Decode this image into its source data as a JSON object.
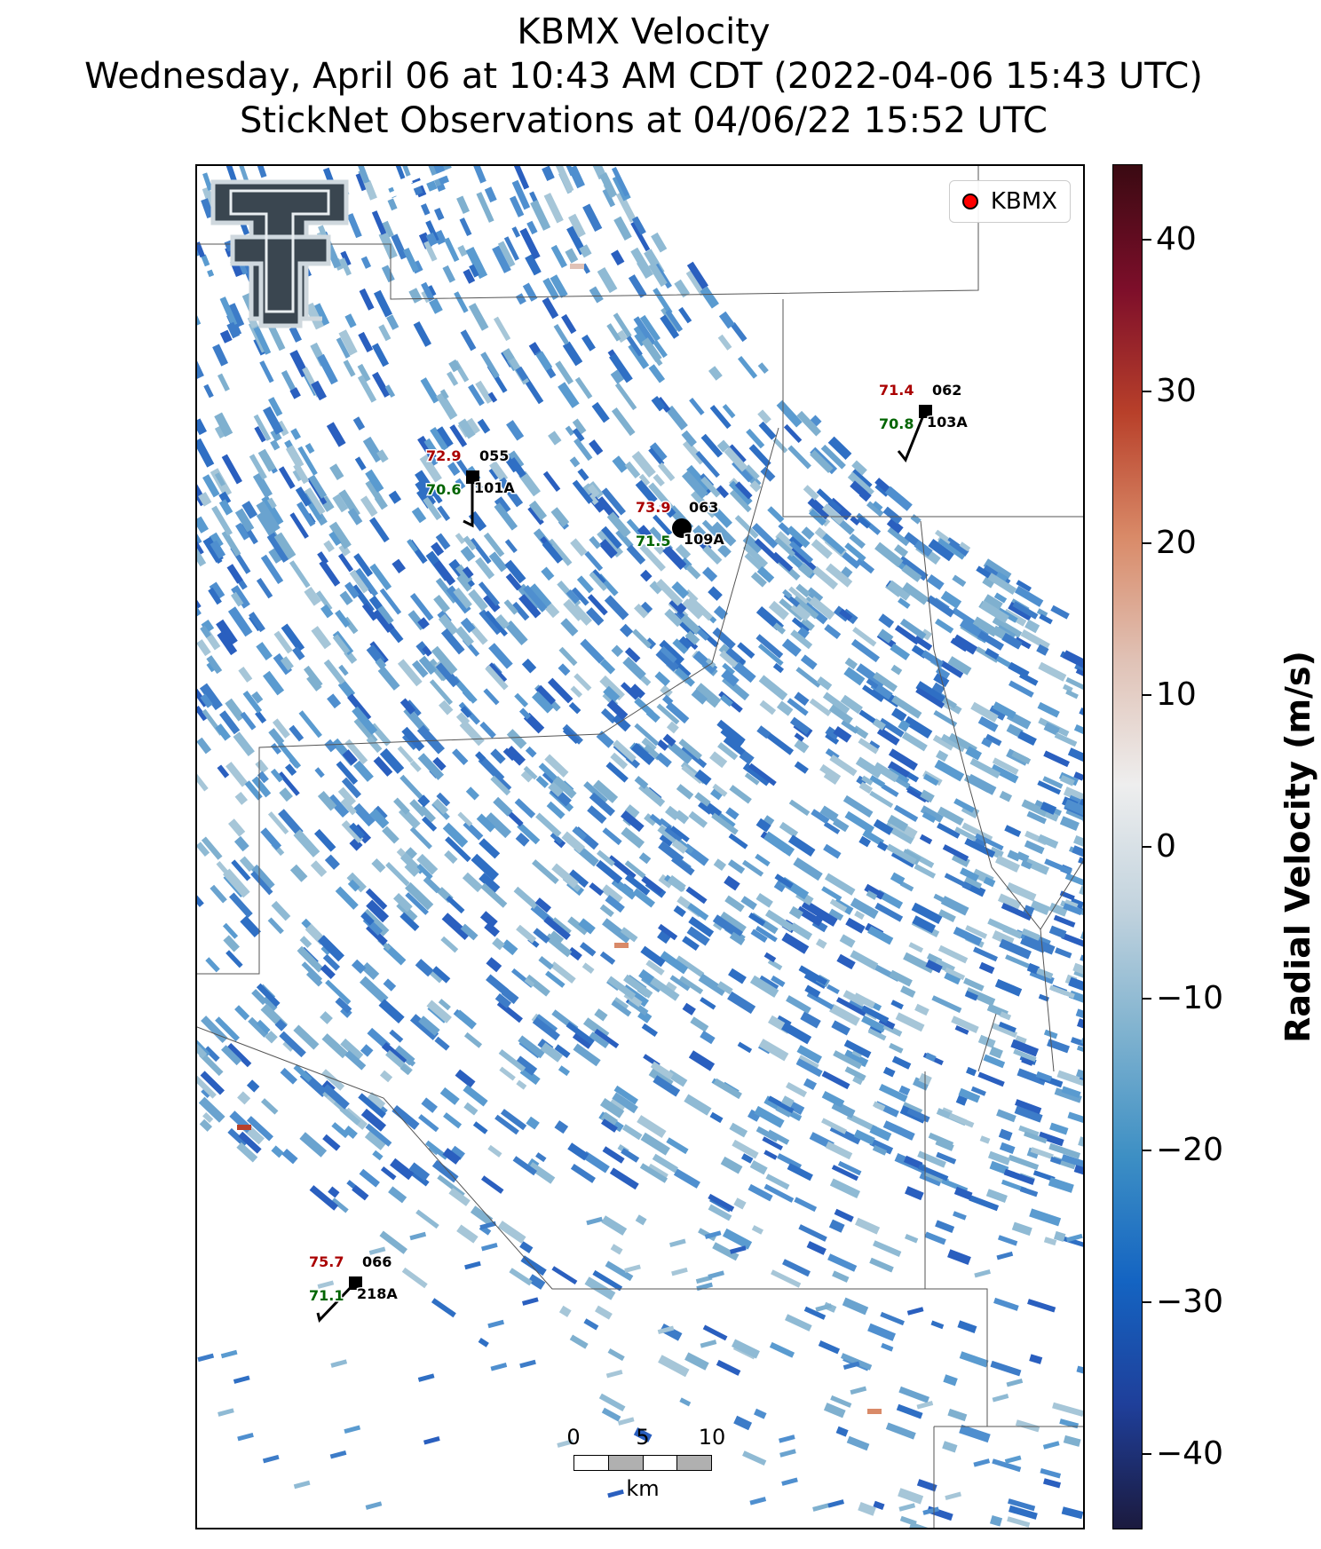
{
  "title": {
    "line1": "KBMX Velocity",
    "line2": "Wednesday, April 06 at 10:43 AM CDT (2022-04-06 15:43 UTC)",
    "line3": "StickNet Observations at 04/06/22 15:52 UTC"
  },
  "legend": {
    "label": "KBMX",
    "marker_color": "#ff0000"
  },
  "logo": {
    "name": "Texas Tech Double T logo"
  },
  "colorbar": {
    "label": "Radial Velocity (m/s)",
    "range": [
      -45,
      45
    ],
    "ticks": [
      "40",
      "30",
      "20",
      "10",
      "0",
      "−10",
      "−20",
      "−30",
      "−40"
    ],
    "tick_values": [
      40,
      30,
      20,
      10,
      0,
      -10,
      -20,
      -30,
      -40
    ],
    "colors": [
      "#1b1a3e",
      "#1f3f9a",
      "#1464c2",
      "#3d8fc4",
      "#7fb2cf",
      "#c2d3de",
      "#eeeeee",
      "#e0c2b6",
      "#d98a68",
      "#b8402a",
      "#7d0e2a",
      "#3a0a12"
    ]
  },
  "scalebar": {
    "ticks": [
      "0",
      "5",
      "10"
    ],
    "unit": "km"
  },
  "stations": [
    {
      "id": "101A",
      "num": "055",
      "temp": "72.9",
      "dew": "70.6"
    },
    {
      "id": "109A",
      "num": "063",
      "temp": "73.9",
      "dew": "71.5"
    },
    {
      "id": "103A",
      "num": "062",
      "temp": "71.4",
      "dew": "70.8"
    },
    {
      "id": "218A",
      "num": "066",
      "temp": "75.7",
      "dew": "71.1"
    }
  ],
  "colors": {
    "temp": "#aa0000",
    "dew": "#006400"
  }
}
